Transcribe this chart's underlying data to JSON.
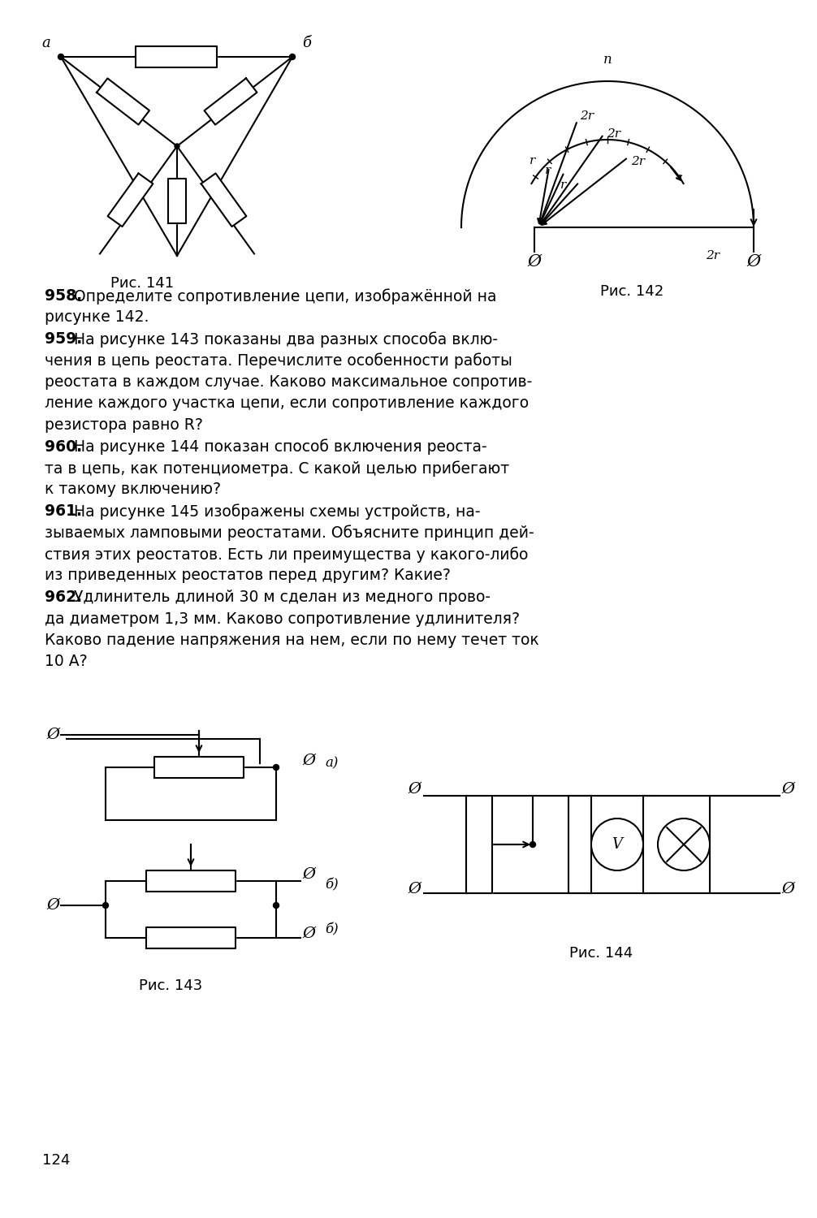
{
  "bg_color": "#ffffff",
  "text_color": "#000000",
  "page_number": "124",
  "fig141_label": "Рис. 141",
  "fig142_label": "Рис. 142",
  "fig143_label": "Рис. 143",
  "fig144_label": "Рис. 144",
  "line_958_1": "    958. Определите сопротивление цепи, изображённой на",
  "line_958_2": "рисунке 142.",
  "line_959_1": "    959. На рисунке 143 показаны два разных способа вклю-",
  "line_959_2": "чения в цепь реостата. Перечислите особенности работы",
  "line_959_3": "реостата в каждом случае. Каково максимальное сопротив-",
  "line_959_4": "ление каждого участка цепи, если сопротивление каждого",
  "line_959_5": "резистора равно R?",
  "line_960_1": "    960. На рисунке 144 показан способ включения реоста-",
  "line_960_2": "та в цепь, как потенциометра. С какой целью прибегают",
  "line_960_3": "к такому включению?",
  "line_961_1": "    961. На рисунке 145 изображены схемы устройств, на-",
  "line_961_2": "зываемых ламповыми реостатами. Объясните принцип дей-",
  "line_961_3": "ствия этих реостатов. Есть ли преимущества у какого-либо",
  "line_961_4": "из приведенных реостатов перед другим? Какие?",
  "line_962_1": "    962. Удлинитель длиной 30 м сделан из медного прово-",
  "line_962_2": "да диаметром 1,3 мм. Каково сопротивление удлинителя?",
  "line_962_3": "Каково падение напряжения на нем, если по нему течет ток",
  "line_962_4": "10 А?"
}
